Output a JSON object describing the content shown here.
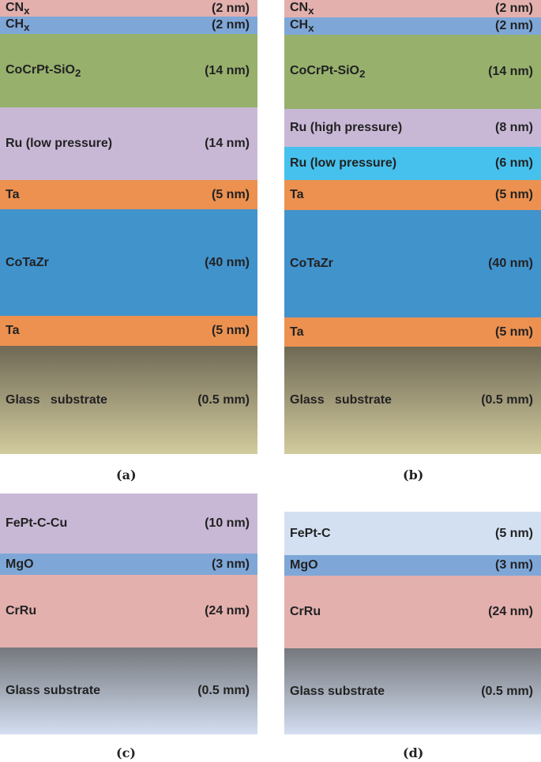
{
  "panels": [
    {
      "caption": "(a)",
      "layers": [
        {
          "name": "CN",
          "sub": "x",
          "thickness": "(2 nm)",
          "color": "#e3b0ae"
        },
        {
          "name": "CH",
          "sub": "x",
          "thickness": "(2 nm)",
          "color": "#7ea7d8"
        },
        {
          "name": "CoCrPt-SiO",
          "sub": "2",
          "thickness": "(14 nm)",
          "color": "#97b16d"
        },
        {
          "name": "Ru (low pressure)",
          "thickness": "(14 nm)",
          "color": "#c8b8d6"
        },
        {
          "name": "Ta",
          "thickness": "(5 nm)",
          "color": "#ec9150"
        },
        {
          "name": "CoTaZr",
          "thickness": "(40 nm)",
          "color": "#4193cc"
        },
        {
          "name": "Ta",
          "thickness": "(5 nm)",
          "color": "#ec9150"
        },
        {
          "name": "Glass   substrate",
          "thickness": "(0.5 mm)",
          "gradient": [
            "#6f6955",
            "#d2cb9e"
          ]
        }
      ]
    },
    {
      "caption": "(b)",
      "layers": [
        {
          "name": "CN",
          "sub": "x",
          "thickness": "(2 nm)",
          "color": "#e3b0ae"
        },
        {
          "name": "CH",
          "sub": "x",
          "thickness": "(2 nm)",
          "color": "#7ea7d8"
        },
        {
          "name": "CoCrPt-SiO",
          "sub": "2",
          "thickness": "(14 nm)",
          "color": "#97b16d"
        },
        {
          "name": "Ru (high pressure)",
          "thickness": "(8 nm)",
          "color": "#c8b8d6"
        },
        {
          "name": "Ru (low pressure)",
          "thickness": "(6 nm)",
          "color": "#46c1ed"
        },
        {
          "name": "Ta",
          "thickness": "(5 nm)",
          "color": "#ec9150"
        },
        {
          "name": "CoTaZr",
          "thickness": "(40 nm)",
          "color": "#4193cc"
        },
        {
          "name": "Ta",
          "thickness": "(5 nm)",
          "color": "#ec9150"
        },
        {
          "name": "Glass   substrate",
          "thickness": "(0.5 mm)",
          "gradient": [
            "#6f6955",
            "#d2cb9e"
          ]
        }
      ]
    },
    {
      "caption": "(c)",
      "layers": [
        {
          "name": "FePt-C-Cu",
          "thickness": "(10 nm)",
          "color": "#c8b8d6"
        },
        {
          "name": "MgO",
          "thickness": "(3 nm)",
          "color": "#7ea7d8"
        },
        {
          "name": "CrRu",
          "thickness": "(24 nm)",
          "color": "#e3b0ae"
        },
        {
          "name": "Glass substrate",
          "thickness": "(0.5 mm)",
          "gradient": [
            "#75787d",
            "#d3def1"
          ]
        }
      ]
    },
    {
      "caption": "(d)",
      "layers": [
        {
          "name": "FePt-C",
          "thickness": "(5 nm)",
          "color": "#d3e0f1"
        },
        {
          "name": "MgO",
          "thickness": "(3 nm)",
          "color": "#7ea7d8"
        },
        {
          "name": "CrRu",
          "thickness": "(24 nm)",
          "color": "#e3b0ae"
        },
        {
          "name": "Glass substrate",
          "thickness": "(0.5 mm)",
          "gradient": [
            "#75787d",
            "#d3def1"
          ]
        }
      ]
    }
  ]
}
